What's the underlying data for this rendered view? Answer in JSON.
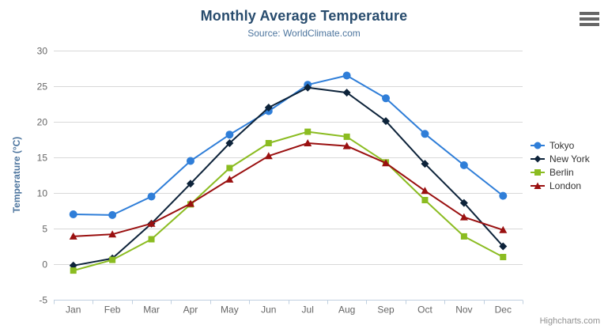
{
  "chart_data": {
    "type": "line",
    "title": "Monthly Average Temperature",
    "subtitle": "Source: WorldClimate.com",
    "categories": [
      "Jan",
      "Feb",
      "Mar",
      "Apr",
      "May",
      "Jun",
      "Jul",
      "Aug",
      "Sep",
      "Oct",
      "Nov",
      "Dec"
    ],
    "xlabel": "",
    "ylabel": "Temperature (°C)",
    "ylim": [
      -5,
      30
    ],
    "ytick_interval": 5,
    "grid": true,
    "legend_position": "right",
    "series": [
      {
        "name": "Tokyo",
        "color": "#2f7ed8",
        "marker": "circle",
        "values": [
          7.0,
          6.9,
          9.5,
          14.5,
          18.2,
          21.5,
          25.2,
          26.5,
          23.3,
          18.3,
          13.9,
          9.6
        ]
      },
      {
        "name": "New York",
        "color": "#0d233a",
        "marker": "diamond",
        "values": [
          -0.2,
          0.8,
          5.7,
          11.3,
          17.0,
          22.0,
          24.8,
          24.1,
          20.1,
          14.1,
          8.6,
          2.5
        ]
      },
      {
        "name": "Berlin",
        "color": "#8bbc21",
        "marker": "square",
        "values": [
          -0.9,
          0.6,
          3.5,
          8.4,
          13.5,
          17.0,
          18.6,
          17.9,
          14.3,
          9.0,
          3.9,
          1.0
        ]
      },
      {
        "name": "London",
        "color": "#9a1010",
        "marker": "triangle",
        "values": [
          3.9,
          4.2,
          5.7,
          8.5,
          11.9,
          15.2,
          17.0,
          16.6,
          14.2,
          10.3,
          6.6,
          4.8
        ]
      }
    ]
  },
  "colors": {
    "title": "#274b6d",
    "subtitle": "#4d759e",
    "axis_labels": "#666666",
    "y_axis_title": "#4d759e",
    "gridline": "#d8d8d8",
    "axis_line": "#c0d0e0",
    "legend_text": "#333333",
    "credits": "#909090",
    "menu_icon": "#666666"
  },
  "export_menu": {
    "icon": "hamburger-menu-icon"
  },
  "credits": {
    "label": "Highcharts.com"
  }
}
